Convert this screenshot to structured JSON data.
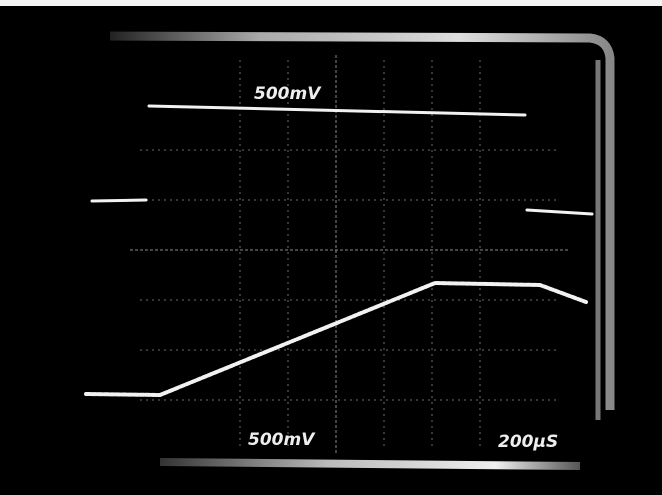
{
  "screen": {
    "labels": {
      "channel_1_scale": "500mV",
      "channel_2_scale": "500mV",
      "time_scale": "200µS"
    }
  }
}
